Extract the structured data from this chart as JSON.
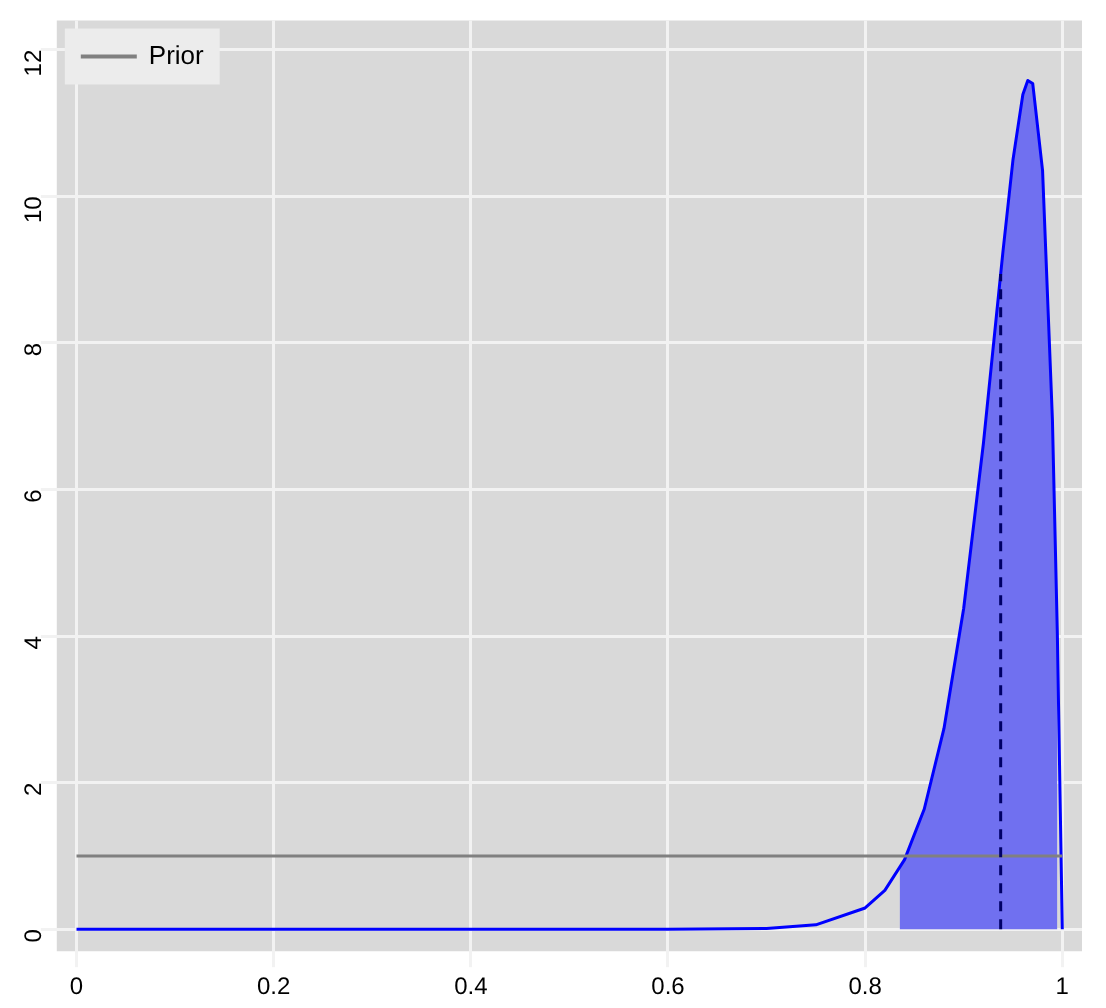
{
  "chart_data": {
    "type": "line",
    "xlim": [
      -0.02,
      1.02
    ],
    "ylim": [
      -0.3,
      12.4
    ],
    "xticks": [
      0,
      0.2,
      0.4,
      0.6,
      0.8,
      1
    ],
    "yticks": [
      0,
      2,
      4,
      6,
      8,
      10,
      12
    ],
    "grid": true,
    "legend": "top left",
    "marker": "none",
    "series": [
      {
        "type": "area",
        "color": "#7070f0",
        "x": [
          0.835,
          0.84,
          0.86,
          0.88,
          0.9,
          0.92,
          0.9375,
          0.94,
          0.95,
          0.96,
          0.965,
          0.97,
          0.98,
          0.99,
          0.995
        ],
        "values": [
          0.82,
          0.95,
          1.64,
          2.74,
          4.38,
          6.63,
          8.94,
          9.27,
          10.5,
          11.39,
          11.58,
          11.54,
          10.35,
          6.95,
          4.02
        ]
      },
      {
        "color": "#0000ff",
        "x": [
          0,
          0.6,
          0.7,
          0.75,
          0.8,
          0.82,
          0.84,
          0.86,
          0.88,
          0.9,
          0.92,
          0.94,
          0.95,
          0.96,
          0.965,
          0.97,
          0.98,
          0.99,
          0.995,
          1
        ],
        "values": [
          0,
          0,
          0.01,
          0.06,
          0.29,
          0.53,
          0.95,
          1.64,
          2.74,
          4.38,
          6.63,
          9.27,
          10.5,
          11.39,
          11.58,
          11.54,
          10.35,
          6.95,
          4.02,
          0
        ]
      },
      {
        "name": "Prior",
        "color": "#808080",
        "x": [
          0,
          1
        ],
        "values": [
          1,
          1
        ]
      },
      {
        "line_style": "dashed",
        "color": "#000066",
        "x": [
          0.9375,
          0.9375
        ],
        "values": [
          0,
          8.94
        ]
      }
    ]
  }
}
